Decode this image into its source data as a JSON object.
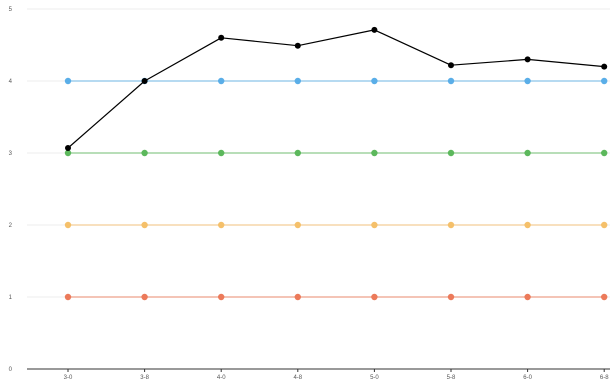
{
  "chart_data": {
    "type": "line",
    "title": "",
    "xlabel": "",
    "ylabel": "",
    "categories": [
      "3-0",
      "3-8",
      "4-0",
      "4-8",
      "5-0",
      "5-8",
      "6-0",
      "6-8"
    ],
    "ylim": [
      0,
      5
    ],
    "yticks": [
      0,
      1,
      2,
      3,
      4,
      5
    ],
    "grid": true,
    "legend": "none",
    "series": [
      {
        "color": "#000000",
        "values": [
          3.07,
          4.0,
          4.6,
          4.49,
          4.71,
          4.22,
          4.3,
          4.2
        ]
      },
      {
        "color": "#5aaee8",
        "values": [
          4,
          4,
          4,
          4,
          4,
          4,
          4,
          4
        ]
      },
      {
        "color": "#5cb85c",
        "values": [
          3,
          3,
          3,
          3,
          3,
          3,
          3,
          3
        ]
      },
      {
        "color": "#f5c06a",
        "values": [
          2,
          2,
          2,
          2,
          2,
          2,
          2,
          2
        ]
      },
      {
        "color": "#ec7a5a",
        "values": [
          1,
          1,
          1,
          1,
          1,
          1,
          1,
          1
        ]
      }
    ]
  }
}
